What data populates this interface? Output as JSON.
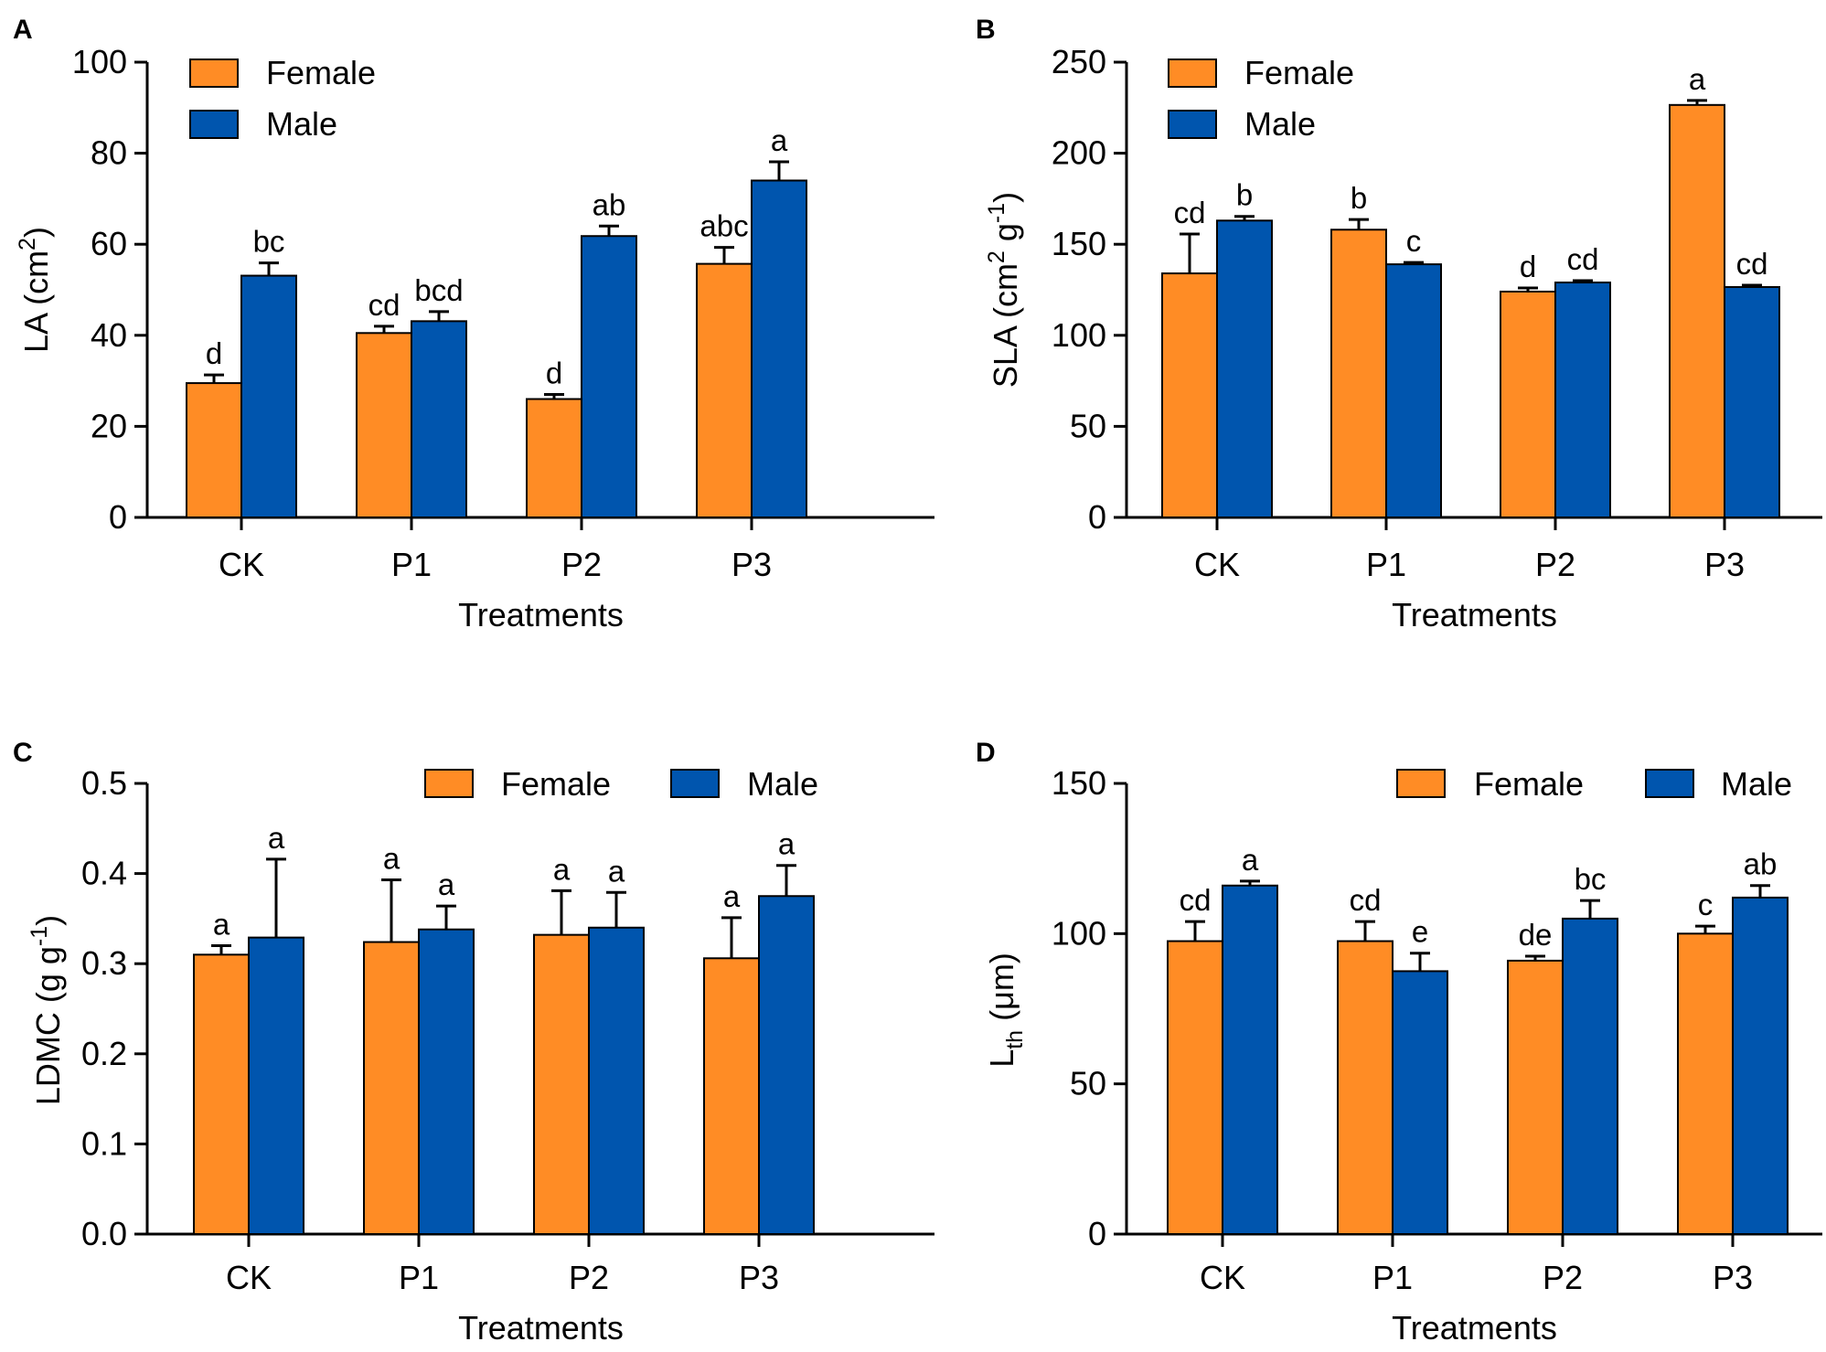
{
  "colors": {
    "female": "#FF8C25",
    "male": "#0055AE"
  },
  "chart_data": [
    {
      "type": "bar",
      "panel": "A",
      "ylabel": "LA (cm2)",
      "ylabel_parts": {
        "main": "LA (cm",
        "sup": "2",
        "end": ")"
      },
      "xlabel": "Treatments",
      "ylim": [
        0,
        100
      ],
      "yticks": [
        0,
        20,
        40,
        60,
        80,
        100
      ],
      "ytick_labels": [
        "0",
        "20",
        "40",
        "60",
        "80",
        "100"
      ],
      "categories": [
        "CK",
        "P1",
        "P2",
        "P3"
      ],
      "legend_position": "top-left-stacked",
      "series": [
        {
          "name": "Female",
          "values": [
            29.5,
            40.5,
            26,
            55.7
          ],
          "errors": [
            1.8,
            1.5,
            1,
            3.6
          ],
          "letters": [
            "d",
            "cd",
            "d",
            "abc"
          ]
        },
        {
          "name": "Male",
          "values": [
            53.1,
            43.1,
            61.8,
            74
          ],
          "errors": [
            2.8,
            2.1,
            2.2,
            4.1
          ],
          "letters": [
            "bc",
            "bcd",
            "ab",
            "a"
          ]
        }
      ]
    },
    {
      "type": "bar",
      "panel": "B",
      "ylabel": "SLA (cm2 g-1)",
      "ylabel_parts": {
        "main": "SLA (cm",
        "sup": "2",
        "mid": " g",
        "sup2": "-1",
        "end": ")"
      },
      "xlabel": "Treatments",
      "ylim": [
        0,
        250
      ],
      "yticks": [
        0,
        50,
        100,
        150,
        200,
        250
      ],
      "ytick_labels": [
        "0",
        "50",
        "100",
        "150",
        "200",
        "250"
      ],
      "categories": [
        "CK",
        "P1",
        "P2",
        "P3"
      ],
      "legend_position": "top-left-stacked",
      "series": [
        {
          "name": "Female",
          "values": [
            134,
            158,
            124,
            226.5
          ],
          "errors": [
            21.6,
            5.6,
            2,
            2.5
          ],
          "letters": [
            "cd",
            "b",
            "d",
            "a"
          ]
        },
        {
          "name": "Male",
          "values": [
            163,
            139,
            129,
            126.5
          ],
          "errors": [
            2.3,
            1,
            1,
            1
          ],
          "letters": [
            "b",
            "c",
            "cd",
            "cd"
          ]
        }
      ]
    },
    {
      "type": "bar",
      "panel": "C",
      "ylabel": "LDMC (g g-1)",
      "ylabel_parts": {
        "main": "LDMC (g g",
        "sup": "-1",
        "end": ")"
      },
      "xlabel": "Treatments",
      "ylim": [
        0,
        0.5
      ],
      "yticks": [
        0,
        0.1,
        0.2,
        0.3,
        0.4,
        0.5
      ],
      "ytick_labels": [
        "0.0",
        "0.1",
        "0.2",
        "0.3",
        "0.4",
        "0.5"
      ],
      "categories": [
        "CK",
        "P1",
        "P2",
        "P3"
      ],
      "legend_position": "top-right-horizontal",
      "series": [
        {
          "name": "Female",
          "values": [
            0.31,
            0.324,
            0.332,
            0.306
          ],
          "errors": [
            0.01,
            0.069,
            0.049,
            0.045
          ],
          "letters": [
            "a",
            "a",
            "a",
            "a"
          ]
        },
        {
          "name": "Male",
          "values": [
            0.329,
            0.338,
            0.34,
            0.375
          ],
          "errors": [
            0.087,
            0.026,
            0.039,
            0.034
          ],
          "letters": [
            "a",
            "a",
            "a",
            "a"
          ]
        }
      ]
    },
    {
      "type": "bar",
      "panel": "D",
      "ylabel": "Lth (μm)",
      "ylabel_parts": {
        "main": "L",
        "sub": "th",
        "end": " (μm)"
      },
      "xlabel": "Treatments",
      "ylim": [
        0,
        150
      ],
      "yticks": [
        0,
        50,
        100,
        150
      ],
      "ytick_labels": [
        "0",
        "50",
        "100",
        "150"
      ],
      "categories": [
        "CK",
        "P1",
        "P2",
        "P3"
      ],
      "legend_position": "top-right-horizontal",
      "series": [
        {
          "name": "Female",
          "values": [
            97.5,
            97.5,
            91,
            100
          ],
          "errors": [
            6.5,
            6.5,
            1.5,
            2.5
          ],
          "letters": [
            "cd",
            "cd",
            "de",
            "c"
          ]
        },
        {
          "name": "Male",
          "values": [
            116,
            87.5,
            105,
            112
          ],
          "errors": [
            1.5,
            6,
            6,
            4
          ],
          "letters": [
            "a",
            "e",
            "bc",
            "ab"
          ]
        }
      ]
    }
  ]
}
